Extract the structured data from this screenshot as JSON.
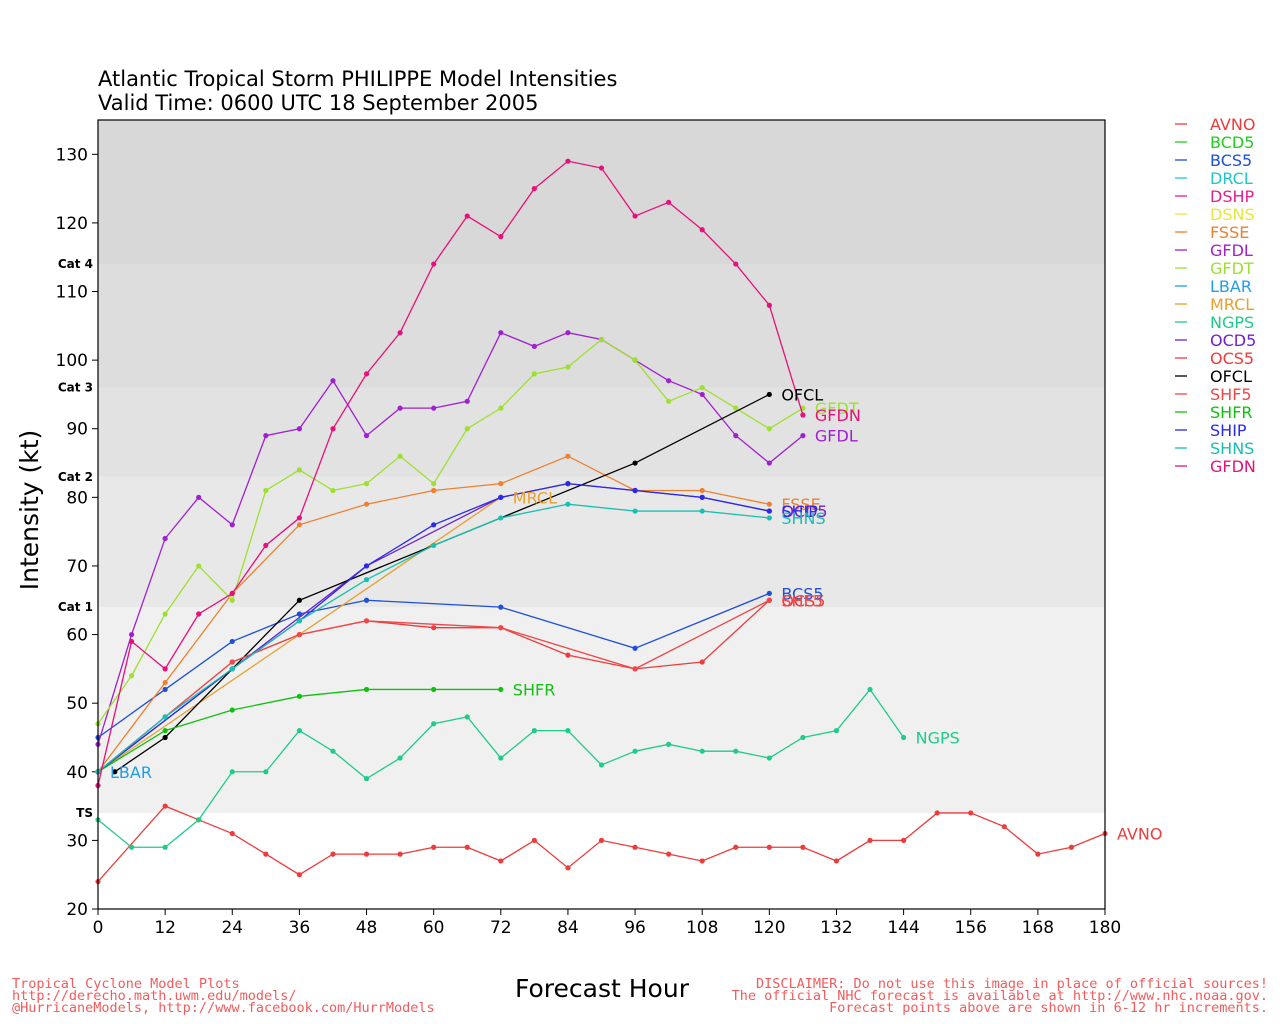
{
  "title": {
    "line1": "Atlantic Tropical Storm PHILIPPE Model Intensities",
    "line2": "Valid Time: 0600 UTC 18 September 2005"
  },
  "footer": {
    "left": [
      "Tropical Cyclone Model Plots",
      "http://derecho.math.uwm.edu/models/",
      "@HurricaneModels, http://www.facebook.com/HurrModels"
    ],
    "right": [
      "DISCLAIMER: Do not use this image in place of official sources!",
      "The official NHC forecast is available at http://www.nhc.noaa.gov.",
      "Forecast points above are shown in 6-12 hr increments."
    ]
  },
  "chart_data": {
    "type": "line",
    "xlabel": "Forecast Hour",
    "ylabel": "Intensity (kt)",
    "xlim": [
      0,
      180
    ],
    "ylim": [
      20,
      135
    ],
    "xticks": [
      0,
      12,
      24,
      36,
      48,
      60,
      72,
      84,
      96,
      108,
      120,
      132,
      144,
      156,
      168,
      180
    ],
    "yticks": [
      20,
      30,
      40,
      50,
      60,
      70,
      80,
      90,
      100,
      110,
      120,
      130
    ],
    "categories": [
      {
        "label": "TS",
        "threshold": 34
      },
      {
        "label": "Cat 1",
        "threshold": 64
      },
      {
        "label": "Cat 2",
        "threshold": 83
      },
      {
        "label": "Cat 3",
        "threshold": 96
      },
      {
        "label": "Cat 4",
        "threshold": 114
      }
    ],
    "legend_position": "right",
    "series": [
      {
        "name": "AVNO",
        "color": "#ee3b3b",
        "label": "AVNO",
        "x": [
          0,
          12,
          18,
          24,
          30,
          36,
          42,
          48,
          54,
          60,
          66,
          72,
          78,
          84,
          90,
          96,
          102,
          108,
          114,
          120,
          126,
          132,
          138,
          144,
          150,
          156,
          162,
          168,
          174,
          180
        ],
        "y": [
          24,
          35,
          33,
          31,
          28,
          25,
          28,
          28,
          28,
          29,
          29,
          27,
          30,
          26,
          30,
          29,
          28,
          27,
          29,
          29,
          29,
          27,
          30,
          30,
          34,
          34,
          32,
          28,
          29,
          31
        ]
      },
      {
        "name": "BCD5",
        "color": "#22cc22",
        "label": "",
        "x": [],
        "y": []
      },
      {
        "name": "BCS5",
        "color": "#1e4fd8",
        "label": "BCS5",
        "x": [
          0,
          12,
          24,
          36,
          48,
          72,
          96,
          120
        ],
        "y": [
          45,
          52,
          59,
          63,
          65,
          64,
          58,
          66
        ]
      },
      {
        "name": "DRCL",
        "color": "#1ec8c8",
        "label": "",
        "x": [],
        "y": []
      },
      {
        "name": "DSHP",
        "color": "#e81e8c",
        "label": "",
        "x": [],
        "y": []
      },
      {
        "name": "DSNS",
        "color": "#e6e640",
        "label": "",
        "x": [],
        "y": []
      },
      {
        "name": "FSSE",
        "color": "#ee8030",
        "label": "FSSE",
        "x": [
          0,
          12,
          24,
          36,
          48,
          60,
          72,
          84,
          96,
          108,
          120
        ],
        "y": [
          40,
          53,
          66,
          76,
          79,
          81,
          82,
          86,
          81,
          81,
          79
        ]
      },
      {
        "name": "GFDL",
        "color": "#a020d0",
        "label": "GFDL",
        "x": [
          0,
          6,
          12,
          18,
          24,
          30,
          36,
          42,
          48,
          54,
          60,
          66,
          72,
          78,
          84,
          90,
          96,
          102,
          108,
          114,
          120,
          126
        ],
        "y": [
          44,
          60,
          74,
          80,
          76,
          89,
          90,
          97,
          89,
          93,
          93,
          94,
          104,
          102,
          104,
          103,
          100,
          97,
          95,
          89,
          85,
          89
        ]
      },
      {
        "name": "GFDT",
        "color": "#9ee030",
        "label": "GFDT",
        "x": [
          0,
          6,
          12,
          18,
          24,
          30,
          36,
          42,
          48,
          54,
          60,
          66,
          72,
          78,
          84,
          90,
          96,
          102,
          108,
          114,
          120,
          126
        ],
        "y": [
          47,
          54,
          63,
          70,
          65,
          81,
          84,
          81,
          82,
          86,
          82,
          90,
          93,
          98,
          99,
          103,
          100,
          94,
          96,
          93,
          90,
          93
        ]
      },
      {
        "name": "LBAR",
        "color": "#1e9ee8",
        "label": "LBAR",
        "x": [
          0
        ],
        "y": [
          40
        ]
      },
      {
        "name": "MRCL",
        "color": "#e8a030",
        "label": "MRCL",
        "x": [
          0,
          72
        ],
        "y": [
          40,
          80
        ]
      },
      {
        "name": "NGPS",
        "color": "#1ecc88",
        "label": "NGPS",
        "x": [
          0,
          6,
          12,
          18,
          24,
          30,
          36,
          42,
          48,
          54,
          60,
          66,
          72,
          78,
          84,
          90,
          96,
          102,
          108,
          114,
          120,
          126,
          132,
          138,
          144
        ],
        "y": [
          33,
          29,
          29,
          33,
          40,
          40,
          46,
          43,
          39,
          42,
          47,
          48,
          42,
          46,
          46,
          41,
          43,
          44,
          43,
          43,
          42,
          45,
          46,
          52,
          45
        ]
      },
      {
        "name": "OCD5",
        "color": "#7020d0",
        "label": "OCD5",
        "x": [
          0,
          48,
          72,
          84,
          96,
          108,
          120
        ],
        "y": [
          40,
          70,
          80,
          82,
          81,
          80,
          78
        ]
      },
      {
        "name": "OCS5",
        "color": "#ee3b3b",
        "label": "OCS5",
        "x": [
          0,
          24,
          36,
          48,
          60,
          72,
          84,
          96,
          108,
          120
        ],
        "y": [
          40,
          56,
          60,
          62,
          61,
          61,
          57,
          55,
          56,
          65
        ]
      },
      {
        "name": "OFCL",
        "color": "#000000",
        "label": "OFCL",
        "x": [
          3,
          12,
          36,
          96,
          120
        ],
        "y": [
          40,
          45,
          65,
          85,
          95
        ]
      },
      {
        "name": "SHF5",
        "color": "#f04848",
        "label": "SHF5",
        "x": [
          0,
          12,
          24,
          36,
          48,
          72,
          96,
          120
        ],
        "y": [
          40,
          48,
          56,
          60,
          62,
          61,
          55,
          65
        ]
      },
      {
        "name": "SHFR",
        "color": "#10c010",
        "label": "SHFR",
        "x": [
          0,
          12,
          24,
          36,
          48,
          60,
          72
        ],
        "y": [
          40,
          46,
          49,
          51,
          52,
          52,
          52
        ]
      },
      {
        "name": "SHIP",
        "color": "#2a2ae8",
        "label": "SHIP",
        "x": [
          0,
          24,
          36,
          48,
          60,
          72,
          84,
          96,
          108,
          120
        ],
        "y": [
          40,
          55,
          62,
          70,
          76,
          80,
          82,
          81,
          80,
          78
        ]
      },
      {
        "name": "SHNS",
        "color": "#18c0b0",
        "label": "SHNS",
        "x": [
          0,
          12,
          24,
          36,
          48,
          60,
          72,
          84,
          96,
          108,
          120
        ],
        "y": [
          40,
          48,
          55,
          62,
          68,
          73,
          77,
          79,
          78,
          78,
          77
        ]
      },
      {
        "name": "GFDN",
        "color": "#e8107a",
        "label": "GFDN",
        "x": [
          0,
          6,
          12,
          18,
          24,
          30,
          36,
          42,
          48,
          54,
          60,
          66,
          72,
          78,
          84,
          90,
          96,
          102,
          108,
          114,
          120,
          126
        ],
        "y": [
          38,
          59,
          55,
          63,
          66,
          73,
          77,
          90,
          98,
          104,
          114,
          121,
          118,
          125,
          129,
          128,
          121,
          123,
          119,
          114,
          108,
          92
        ]
      }
    ]
  }
}
